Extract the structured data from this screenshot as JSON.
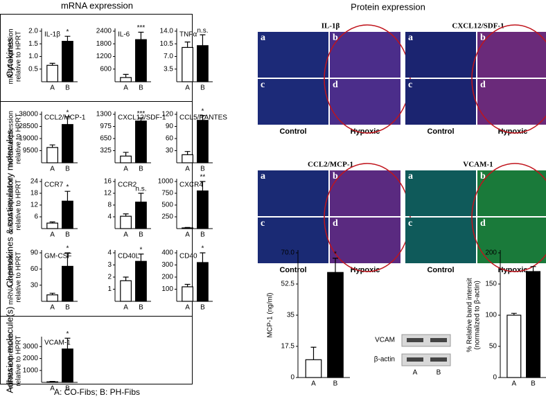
{
  "figure": {
    "left_title": "mRNA expression",
    "right_title": "Protein expression",
    "groups": [
      "Cytokines",
      "Chemokines & costimulatory molecules",
      "Adhesion molecule(s)"
    ],
    "footer": "A: CO-Fibs; B: PH-Fibs",
    "micrographs": [
      {
        "title": "IL-1β",
        "panels": [
          "a",
          "b",
          "c",
          "d"
        ],
        "labels": [
          "Control",
          "Hypoxic"
        ]
      },
      {
        "title": "CXCL12/SDF-1",
        "panels": [
          "a",
          "b",
          "c",
          "d"
        ],
        "labels": [
          "Control",
          "Hypoxic"
        ]
      },
      {
        "title": "CCL2/MCP-1",
        "panels": [
          "a",
          "b",
          "c",
          "d"
        ],
        "labels": [
          "Control",
          "Hypoxic"
        ]
      },
      {
        "title": "VCAM-1",
        "panels": [
          "a",
          "b",
          "c",
          "d"
        ],
        "labels": [
          "Control",
          "Hypoxic"
        ]
      }
    ],
    "blot": {
      "rows": [
        "VCAM",
        "β-actin"
      ],
      "lanes": [
        "A",
        "B"
      ]
    }
  },
  "chart_data": [
    {
      "type": "bar",
      "title": "IL-1β",
      "ylabel": [
        "mRNA expression",
        "relative to HPRT"
      ],
      "categories": [
        "A",
        "B"
      ],
      "values": [
        0.65,
        1.6
      ],
      "errors": [
        0.08,
        0.2
      ],
      "annotation": "*",
      "colors": [
        "#ffffff",
        "#000000"
      ],
      "ylim": [
        0,
        2
      ],
      "yticks": [
        0.5,
        {
          "value": 1,
          "label": "1.0"
        },
        1.5,
        {
          "value": 2,
          "label": "2.0"
        }
      ]
    },
    {
      "type": "bar",
      "title": "IL-6",
      "categories": [
        "A",
        "B"
      ],
      "values": [
        200,
        2000
      ],
      "errors": [
        150,
        350
      ],
      "annotation": "***",
      "colors": [
        "#ffffff",
        "#000000"
      ],
      "ylim": [
        0,
        2400
      ],
      "yticks": [
        600,
        1200,
        1800,
        2400
      ]
    },
    {
      "type": "bar",
      "title": "TNFα",
      "categories": [
        "A",
        "B"
      ],
      "values": [
        9.5,
        10
      ],
      "errors": [
        1.5,
        3
      ],
      "annotation": "n.s.",
      "colors": [
        "#ffffff",
        "#000000"
      ],
      "ylim": [
        0,
        14
      ],
      "yticks": [
        3.5,
        {
          "value": 7,
          "label": "7.0"
        },
        10.5,
        {
          "value": 14,
          "label": "14.0"
        }
      ]
    },
    {
      "type": "bar",
      "title": "CCL2/MCP-1",
      "ylabel": [
        "mRNA expression",
        "relative to HPRT"
      ],
      "categories": [
        "A",
        "B"
      ],
      "values": [
        12000,
        30000
      ],
      "errors": [
        2000,
        6000
      ],
      "annotation": "*",
      "colors": [
        "#ffffff",
        "#000000"
      ],
      "ylim": [
        0,
        38000
      ],
      "yticks": [
        9500,
        19000,
        28500,
        38000
      ]
    },
    {
      "type": "bar",
      "title": "CXCL12/SDF-1",
      "categories": [
        "A",
        "B"
      ],
      "values": [
        180,
        1120
      ],
      "errors": [
        100,
        80
      ],
      "annotation": "***",
      "colors": [
        "#ffffff",
        "#000000"
      ],
      "ylim": [
        0,
        1300
      ],
      "yticks": [
        325,
        650,
        975,
        1300
      ]
    },
    {
      "type": "bar",
      "title": "CCL5/RANTES",
      "categories": [
        "A",
        "B"
      ],
      "values": [
        20,
        105
      ],
      "errors": [
        8,
        12
      ],
      "annotation": "*",
      "colors": [
        "#ffffff",
        "#000000"
      ],
      "ylim": [
        0,
        120
      ],
      "yticks": [
        30,
        60,
        90,
        120
      ]
    },
    {
      "type": "bar",
      "title": "CCR7",
      "ylabel": [
        "mRNA expression",
        "relative to HPRT"
      ],
      "categories": [
        "A",
        "B"
      ],
      "values": [
        2.8,
        14
      ],
      "errors": [
        0.6,
        5
      ],
      "annotation": "*",
      "colors": [
        "#ffffff",
        "#000000"
      ],
      "ylim": [
        0,
        24
      ],
      "yticks": [
        6,
        12,
        18,
        24
      ]
    },
    {
      "type": "bar",
      "title": "CCR2",
      "categories": [
        "A",
        "B"
      ],
      "values": [
        4.2,
        9
      ],
      "errors": [
        0.8,
        3
      ],
      "annotation": "n.s.",
      "colors": [
        "#ffffff",
        "#000000"
      ],
      "ylim": [
        0,
        16
      ],
      "yticks": [
        4,
        8,
        12,
        16
      ]
    },
    {
      "type": "bar",
      "title": "CXCR4",
      "categories": [
        "A",
        "B"
      ],
      "values": [
        15,
        800
      ],
      "errors": [
        10,
        200
      ],
      "annotation": "**",
      "colors": [
        "#ffffff",
        "#000000"
      ],
      "ylim": [
        0,
        1000
      ],
      "yticks": [
        250,
        500,
        750,
        1000
      ]
    },
    {
      "type": "bar",
      "title": "GM-CSF",
      "ylabel": [
        "mRNA expression",
        "relative to HPRT"
      ],
      "categories": [
        "A",
        "B"
      ],
      "values": [
        12,
        65
      ],
      "errors": [
        3,
        25
      ],
      "annotation": "*",
      "colors": [
        "#ffffff",
        "#000000"
      ],
      "ylim": [
        0,
        90
      ],
      "yticks": [
        30,
        60,
        90
      ]
    },
    {
      "type": "bar",
      "title": "CD40L",
      "categories": [
        "A",
        "B"
      ],
      "values": [
        1.7,
        3.3
      ],
      "errors": [
        0.3,
        0.6
      ],
      "annotation": "*",
      "colors": [
        "#ffffff",
        "#000000"
      ],
      "ylim": [
        0,
        4
      ],
      "yticks": [
        1,
        2,
        3,
        4
      ]
    },
    {
      "type": "bar",
      "title": "CD40",
      "categories": [
        "A",
        "B"
      ],
      "values": [
        120,
        320
      ],
      "errors": [
        20,
        80
      ],
      "annotation": "*",
      "colors": [
        "#ffffff",
        "#000000"
      ],
      "ylim": [
        0,
        400
      ],
      "yticks": [
        100,
        200,
        300,
        400
      ]
    },
    {
      "type": "bar",
      "title": "VCAM-1",
      "ylabel": [
        "mRNA expression",
        "relative to HPRT"
      ],
      "categories": [
        "A",
        "B"
      ],
      "values": [
        50,
        2800
      ],
      "errors": [
        30,
        900
      ],
      "annotation": "*",
      "colors": [
        "#ffffff",
        "#000000"
      ],
      "ylim": [
        0,
        3600
      ],
      "yticks": [
        1000,
        2000,
        3000
      ]
    },
    {
      "type": "bar",
      "ylabel": [
        "MCP-1 (ng/ml)"
      ],
      "categories": [
        "A",
        "B"
      ],
      "values": [
        10,
        59
      ],
      "errors": [
        7,
        8
      ],
      "annotation": "*",
      "colors": [
        "#ffffff",
        "#000000"
      ],
      "ylim": [
        0,
        70
      ],
      "yticks": [
        0,
        17.5,
        35,
        52.5,
        {
          "value": 70,
          "label": "70.0"
        }
      ]
    },
    {
      "type": "bar",
      "ylabel": [
        "% Relative band intensit",
        "(normalized to β-actin)"
      ],
      "categories": [
        "A",
        "B"
      ],
      "values": [
        100,
        170
      ],
      "errors": [
        3,
        8
      ],
      "colors": [
        "#ffffff",
        "#000000"
      ],
      "ylim": [
        0,
        200
      ],
      "yticks": [
        0,
        50,
        100,
        150,
        200
      ]
    }
  ]
}
